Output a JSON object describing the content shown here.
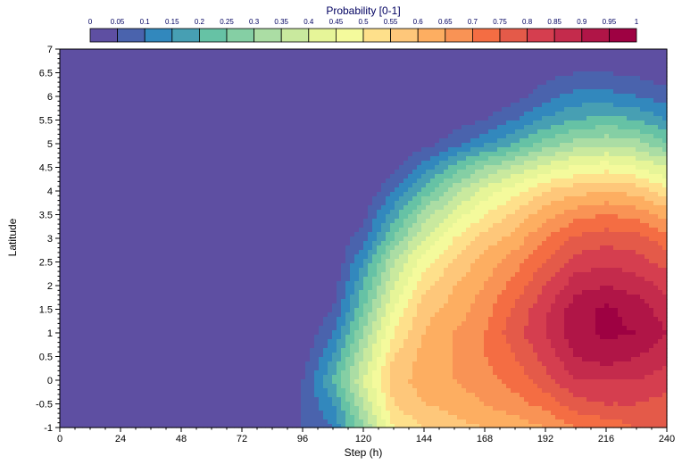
{
  "chart_data": {
    "type": "heatmap",
    "title": "",
    "xlabel": "Step (h)",
    "ylabel": "Latitude",
    "xlim": [
      0,
      240
    ],
    "ylim": [
      -1,
      7
    ],
    "x_ticks": [
      "0",
      "24",
      "48",
      "72",
      "96",
      "120",
      "144",
      "168",
      "192",
      "216",
      "240"
    ],
    "y_ticks": [
      "-1",
      "-0.5",
      "0",
      "0.5",
      "1",
      "1.5",
      "2",
      "2.5",
      "3",
      "3.5",
      "4",
      "4.5",
      "5",
      "5.5",
      "6",
      "6.5",
      "7"
    ],
    "grid": false,
    "colorbar": {
      "title": "Probability [0-1]",
      "placement": "top",
      "levels": [
        "0",
        "0.05",
        "0.1",
        "0.15",
        "0.2",
        "0.25",
        "0.3",
        "0.35",
        "0.4",
        "0.45",
        "0.5",
        "0.55",
        "0.6",
        "0.65",
        "0.7",
        "0.75",
        "0.8",
        "0.85",
        "0.9",
        "0.95",
        "1"
      ],
      "colors": [
        "#5e4fa2",
        "#4a63ad",
        "#3288bd",
        "#479fb3",
        "#66c2a5",
        "#85cfa4",
        "#abdda4",
        "#c9e99e",
        "#e6f598",
        "#f4fa9c",
        "#fee08b",
        "#fec77a",
        "#fdae61",
        "#f99355",
        "#f46d43",
        "#e45a49",
        "#d53e4f",
        "#c42b4c",
        "#b01547",
        "#9e0142"
      ]
    },
    "x": [
      0,
      24,
      48,
      72,
      96,
      108,
      120,
      132,
      144,
      156,
      168,
      180,
      192,
      204,
      216,
      228,
      240
    ],
    "y": [
      -1,
      -0.5,
      0,
      0.5,
      1,
      1.5,
      2,
      2.5,
      3,
      3.5,
      4,
      4.5,
      5,
      5.5,
      6,
      6.5,
      7
    ],
    "z": [
      [
        0,
        0,
        0,
        0,
        0.05,
        0.1,
        0.3,
        0.5,
        0.55,
        0.58,
        0.6,
        0.62,
        0.65,
        0.7,
        0.72,
        0.75,
        0.75
      ],
      [
        0,
        0,
        0,
        0,
        0.05,
        0.15,
        0.35,
        0.55,
        0.6,
        0.62,
        0.65,
        0.68,
        0.72,
        0.78,
        0.8,
        0.8,
        0.78
      ],
      [
        0,
        0,
        0,
        0,
        0.05,
        0.2,
        0.4,
        0.58,
        0.62,
        0.65,
        0.68,
        0.72,
        0.78,
        0.85,
        0.85,
        0.85,
        0.82
      ],
      [
        0,
        0,
        0,
        0,
        0.02,
        0.15,
        0.35,
        0.55,
        0.62,
        0.65,
        0.7,
        0.75,
        0.82,
        0.9,
        0.93,
        0.9,
        0.87
      ],
      [
        0,
        0,
        0,
        0,
        0,
        0.1,
        0.3,
        0.5,
        0.6,
        0.65,
        0.7,
        0.78,
        0.85,
        0.93,
        0.96,
        0.95,
        0.9
      ],
      [
        0,
        0,
        0,
        0,
        0,
        0.05,
        0.25,
        0.45,
        0.58,
        0.62,
        0.68,
        0.76,
        0.84,
        0.93,
        0.96,
        0.93,
        0.87
      ],
      [
        0,
        0,
        0,
        0,
        0,
        0.02,
        0.2,
        0.4,
        0.53,
        0.6,
        0.65,
        0.72,
        0.8,
        0.88,
        0.9,
        0.88,
        0.83
      ],
      [
        0,
        0,
        0,
        0,
        0,
        0,
        0.15,
        0.35,
        0.48,
        0.56,
        0.62,
        0.68,
        0.75,
        0.82,
        0.84,
        0.82,
        0.78
      ],
      [
        0,
        0,
        0,
        0,
        0,
        0,
        0.08,
        0.25,
        0.4,
        0.5,
        0.57,
        0.62,
        0.7,
        0.76,
        0.78,
        0.77,
        0.72
      ],
      [
        0,
        0,
        0,
        0,
        0,
        0,
        0.03,
        0.18,
        0.32,
        0.42,
        0.5,
        0.56,
        0.63,
        0.68,
        0.7,
        0.68,
        0.63
      ],
      [
        0,
        0,
        0,
        0,
        0,
        0,
        0,
        0.1,
        0.22,
        0.33,
        0.42,
        0.48,
        0.55,
        0.58,
        0.6,
        0.58,
        0.52
      ],
      [
        0,
        0,
        0,
        0,
        0,
        0,
        0,
        0.03,
        0.12,
        0.22,
        0.3,
        0.36,
        0.42,
        0.46,
        0.48,
        0.45,
        0.4
      ],
      [
        0,
        0,
        0,
        0,
        0,
        0,
        0,
        0,
        0.03,
        0.08,
        0.14,
        0.2,
        0.27,
        0.32,
        0.34,
        0.32,
        0.26
      ],
      [
        0,
        0,
        0,
        0,
        0,
        0,
        0,
        0,
        0,
        0.02,
        0.05,
        0.1,
        0.16,
        0.2,
        0.22,
        0.2,
        0.15
      ],
      [
        0,
        0,
        0,
        0,
        0,
        0,
        0,
        0,
        0,
        0,
        0,
        0.03,
        0.08,
        0.12,
        0.12,
        0.1,
        0.07
      ],
      [
        0,
        0,
        0,
        0,
        0,
        0,
        0,
        0,
        0,
        0,
        0,
        0,
        0.03,
        0.05,
        0.05,
        0.04,
        0.02
      ],
      [
        0,
        0,
        0,
        0,
        0,
        0,
        0,
        0,
        0,
        0,
        0,
        0,
        0,
        0,
        0,
        0,
        0
      ]
    ]
  }
}
